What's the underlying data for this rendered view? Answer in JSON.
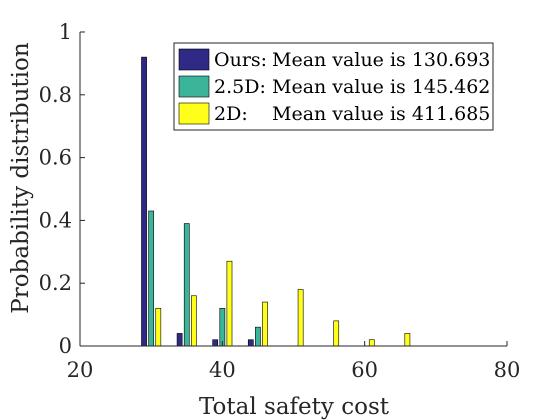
{
  "chart_data": {
    "type": "bar",
    "xlabel": "Total safety cost",
    "ylabel": "Probability distribution",
    "xlim": [
      20,
      80
    ],
    "ylim": [
      0,
      1
    ],
    "xticks": [
      20,
      40,
      60,
      80
    ],
    "yticks": [
      0,
      0.2,
      0.4,
      0.6,
      0.8,
      1
    ],
    "ytick_labels": [
      "0",
      "0.2",
      "0.4",
      "0.6",
      "0.8",
      "1"
    ],
    "grid": false,
    "legend_position": "top-right",
    "series": [
      {
        "label": "Ours:",
        "legend_text": "Mean value is 130.693",
        "color": "#2e2a86",
        "x": [
          29,
          34,
          39,
          44
        ],
        "values": [
          0.92,
          0.04,
          0.02,
          0.02
        ]
      },
      {
        "label": "2.5D:",
        "legend_text": "Mean value is 145.462",
        "color": "#3bb59a",
        "x": [
          30,
          35,
          40,
          45
        ],
        "values": [
          0.43,
          0.39,
          0.12,
          0.06
        ]
      },
      {
        "label": "2D:",
        "legend_text": "Mean value is 411.685",
        "color": "#ffff1a",
        "x": [
          31,
          36,
          41,
          46,
          51,
          56,
          61,
          66
        ],
        "values": [
          0.12,
          0.16,
          0.27,
          0.14,
          0.18,
          0.08,
          0.02,
          0.04
        ]
      }
    ]
  }
}
